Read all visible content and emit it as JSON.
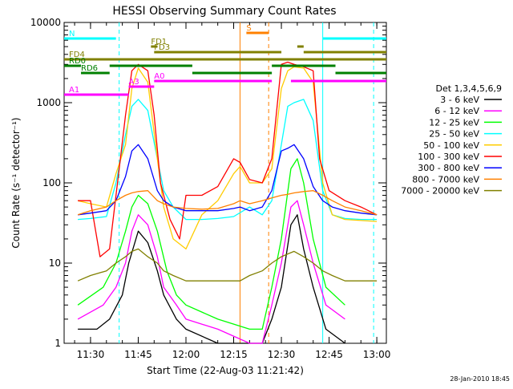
{
  "chart_data": {
    "type": "line",
    "title": "HESSI Observing Summary Count Rates",
    "xlabel": "Start Time (22-Aug-03 11:21:42)",
    "ylabel": "Count Rate (s⁻¹ detector⁻¹)",
    "yscale": "log",
    "xlim": [
      "11:21:42",
      "13:03:00"
    ],
    "ylim": [
      1,
      10000
    ],
    "x_ticks": [
      "11:30",
      "11:45",
      "12:00",
      "12:15",
      "12:30",
      "12:45",
      "13:00"
    ],
    "y_ticks": [
      "1",
      "10",
      "100",
      "1000",
      "10000"
    ],
    "legend_title": "Det 1,3,4,5,6,9",
    "legend_position": "right",
    "series": [
      {
        "name": "3 - 6 keV",
        "color": "#000000",
        "x": [
          "11:26",
          "11:32",
          "11:36",
          "11:40",
          "11:42",
          "11:45",
          "11:48",
          "11:51",
          "11:53",
          "11:57",
          "12:00",
          "12:10",
          "12:20",
          "12:24",
          "12:27",
          "12:30",
          "12:33",
          "12:35",
          "12:37",
          "12:40",
          "12:44",
          "12:50"
        ],
        "y": [
          1.5,
          1.5,
          2,
          4,
          10,
          25,
          18,
          8,
          4,
          2,
          1.5,
          1,
          1,
          1,
          2,
          5,
          30,
          40,
          15,
          5,
          1.5,
          1
        ]
      },
      {
        "name": "6 - 12 keV",
        "color": "#ff00ff",
        "x": [
          "11:26",
          "11:34",
          "11:38",
          "11:41",
          "11:43",
          "11:45",
          "11:48",
          "11:51",
          "11:53",
          "11:57",
          "12:00",
          "12:10",
          "12:20",
          "12:24",
          "12:27",
          "12:30",
          "12:33",
          "12:35",
          "12:37",
          "12:40",
          "12:44",
          "12:50"
        ],
        "y": [
          2,
          3,
          5,
          10,
          25,
          40,
          30,
          12,
          5,
          3,
          2,
          1.5,
          1,
          1,
          3,
          10,
          50,
          60,
          30,
          10,
          3,
          2
        ]
      },
      {
        "name": "12 - 25 keV",
        "color": "#00ff00",
        "x": [
          "11:26",
          "11:34",
          "11:38",
          "11:41",
          "11:43",
          "11:45",
          "11:48",
          "11:51",
          "11:54",
          "11:57",
          "12:00",
          "12:10",
          "12:20",
          "12:24",
          "12:27",
          "12:30",
          "12:33",
          "12:35",
          "12:37",
          "12:40",
          "12:44",
          "12:50"
        ],
        "y": [
          3,
          5,
          10,
          25,
          50,
          70,
          55,
          25,
          8,
          4,
          3,
          2,
          1.5,
          1.5,
          5,
          20,
          150,
          200,
          100,
          20,
          5,
          3
        ]
      },
      {
        "name": "25 - 50 keV",
        "color": "#00ffff",
        "x": [
          "11:26",
          "11:30",
          "11:35",
          "11:38",
          "11:41",
          "11:43",
          "11:45",
          "11:48",
          "11:51",
          "11:53",
          "11:56",
          "12:00",
          "12:05",
          "12:10",
          "12:15",
          "12:20",
          "12:24",
          "12:27",
          "12:30",
          "12:32",
          "12:34",
          "12:37",
          "12:40",
          "12:43",
          "12:46",
          "12:50",
          "12:55",
          "13:00"
        ],
        "y": [
          35,
          36,
          38,
          100,
          400,
          900,
          1100,
          800,
          200,
          80,
          50,
          35,
          35,
          36,
          38,
          50,
          40,
          60,
          300,
          900,
          1000,
          1100,
          600,
          80,
          40,
          36,
          35,
          35
        ]
      },
      {
        "name": "50 - 100 keV",
        "color": "#ffcc00",
        "x": [
          "11:26",
          "11:30",
          "11:35",
          "11:38",
          "11:41",
          "11:43",
          "11:45",
          "11:48",
          "11:51",
          "11:53",
          "11:56",
          "12:00",
          "12:05",
          "12:10",
          "12:15",
          "12:17",
          "12:20",
          "12:24",
          "12:27",
          "12:30",
          "12:32",
          "12:34",
          "12:37",
          "12:40",
          "12:43",
          "12:46",
          "12:50",
          "12:55",
          "13:00"
        ],
        "y": [
          60,
          55,
          50,
          130,
          300,
          1500,
          2700,
          1800,
          200,
          50,
          20,
          15,
          40,
          60,
          130,
          160,
          100,
          100,
          150,
          1500,
          2500,
          2800,
          2700,
          1800,
          100,
          40,
          35,
          34,
          33
        ]
      },
      {
        "name": "100 - 300 keV",
        "color": "#ff0000",
        "x": [
          "11:26",
          "11:30",
          "11:33",
          "11:36",
          "11:39",
          "11:41",
          "11:43",
          "11:45",
          "11:48",
          "11:50",
          "11:52",
          "11:55",
          "11:58",
          "12:00",
          "12:05",
          "12:10",
          "12:15",
          "12:17",
          "12:20",
          "12:24",
          "12:27",
          "12:30",
          "12:32",
          "12:34",
          "12:37",
          "12:40",
          "12:42",
          "12:45",
          "12:50",
          "12:55",
          "13:00"
        ],
        "y": [
          60,
          60,
          12,
          15,
          150,
          700,
          2500,
          3000,
          2500,
          700,
          100,
          35,
          20,
          70,
          70,
          90,
          200,
          180,
          110,
          100,
          200,
          3000,
          3200,
          3000,
          2800,
          2500,
          200,
          80,
          60,
          50,
          40
        ]
      },
      {
        "name": "300 - 800 keV",
        "color": "#0000ff",
        "x": [
          "11:26",
          "11:30",
          "11:35",
          "11:38",
          "11:41",
          "11:43",
          "11:45",
          "11:48",
          "11:51",
          "11:53",
          "11:56",
          "12:00",
          "12:05",
          "12:10",
          "12:15",
          "12:17",
          "12:20",
          "12:24",
          "12:27",
          "12:30",
          "12:32",
          "12:34",
          "12:37",
          "12:40",
          "12:43",
          "12:46",
          "12:50",
          "12:55",
          "13:00"
        ],
        "y": [
          40,
          42,
          45,
          60,
          120,
          250,
          300,
          200,
          80,
          60,
          50,
          45,
          45,
          45,
          48,
          50,
          45,
          50,
          80,
          250,
          270,
          300,
          200,
          90,
          60,
          50,
          45,
          42,
          40
        ]
      },
      {
        "name": "800 - 7000 keV",
        "color": "#ff8000",
        "x": [
          "11:26",
          "11:30",
          "11:35",
          "11:38",
          "11:41",
          "11:43",
          "11:45",
          "11:48",
          "11:51",
          "11:53",
          "11:56",
          "12:00",
          "12:05",
          "12:10",
          "12:15",
          "12:17",
          "12:20",
          "12:24",
          "12:27",
          "12:30",
          "12:32",
          "12:34",
          "12:37",
          "12:40",
          "12:43",
          "12:46",
          "12:50",
          "12:55",
          "13:00"
        ],
        "y": [
          40,
          45,
          50,
          60,
          70,
          75,
          78,
          80,
          60,
          55,
          50,
          48,
          47,
          48,
          55,
          60,
          55,
          60,
          65,
          70,
          72,
          75,
          78,
          80,
          70,
          60,
          50,
          45,
          40
        ]
      },
      {
        "name": "7000 - 20000 keV",
        "color": "#808000",
        "x": [
          "11:26",
          "11:30",
          "11:35",
          "11:38",
          "11:41",
          "11:43",
          "11:45",
          "11:48",
          "11:51",
          "11:53",
          "11:56",
          "12:00",
          "12:05",
          "12:10",
          "12:15",
          "12:17",
          "12:20",
          "12:24",
          "12:27",
          "12:30",
          "12:32",
          "12:34",
          "12:37",
          "12:40",
          "12:43",
          "12:46",
          "12:50",
          "12:55",
          "13:00"
        ],
        "y": [
          6,
          7,
          8,
          10,
          12,
          14,
          15,
          12,
          10,
          8,
          7,
          6,
          6,
          6,
          6,
          6,
          7,
          8,
          10,
          12,
          13,
          14,
          12,
          10,
          8,
          7,
          6,
          6,
          6
        ]
      }
    ],
    "attenuator_states": [
      {
        "label": "A1",
        "color": "#ff00ff",
        "segments": [
          [
            "11:21:42",
            "11:42:00"
          ]
        ]
      },
      {
        "label": "A3",
        "color": "#ff00ff",
        "segments": [
          [
            "11:42:00",
            "11:50:00"
          ]
        ]
      },
      {
        "label": "A0",
        "color": "#ff00ff",
        "segments": [
          [
            "11:50:00",
            "12:27:00"
          ],
          [
            "12:33:00",
            "13:03:00"
          ]
        ]
      }
    ],
    "decimation_states": [
      {
        "label": "RD0",
        "color": "#008000",
        "segments": [
          [
            "11:21:42",
            "11:27:00"
          ],
          [
            "11:36:00",
            "12:02:00"
          ],
          [
            "12:27:00",
            "12:47:00"
          ]
        ]
      },
      {
        "label": "RD6",
        "color": "#008000",
        "segments": [
          [
            "11:27:00",
            "11:36:00"
          ],
          [
            "12:02:00",
            "12:27:00"
          ],
          [
            "12:47:00",
            "13:03:00"
          ]
        ]
      }
    ],
    "flare_flags": [
      {
        "label": "FD1",
        "color": "#808000",
        "segments": [
          [
            "11:49:00",
            "11:51:00"
          ],
          [
            "12:35:00",
            "12:37:00"
          ]
        ]
      },
      {
        "label": "FD3",
        "color": "#808000",
        "segments": [
          [
            "11:50:00",
            "12:30:00"
          ],
          [
            "12:37:00",
            "13:03:00"
          ]
        ]
      },
      {
        "label": "FD4",
        "color": "#808000",
        "segments": [
          [
            "11:21:42",
            "13:03:00"
          ]
        ]
      }
    ],
    "saa_flags": [
      {
        "label": "S",
        "color": "#ff8000",
        "segments": [
          [
            "12:19:00",
            "12:26:00"
          ]
        ]
      }
    ],
    "night_flags": [
      {
        "label": "N",
        "color": "#00ffff",
        "segments": [
          [
            "11:21:42",
            "11:38:00"
          ],
          [
            "12:43:00",
            "13:03:00"
          ]
        ]
      }
    ],
    "vertical_markers": [
      {
        "time": "11:39:00",
        "color": "#00ffff",
        "style": "dashed"
      },
      {
        "time": "12:17:00",
        "color": "#ff8000",
        "style": "solid"
      },
      {
        "time": "12:26:00",
        "color": "#ff8000",
        "style": "dashed"
      },
      {
        "time": "12:43:00",
        "color": "#00ffff",
        "style": "solid"
      },
      {
        "time": "12:59:00",
        "color": "#00ffff",
        "style": "dashed"
      }
    ],
    "timestamp": "28-Jan-2010 18:45"
  }
}
